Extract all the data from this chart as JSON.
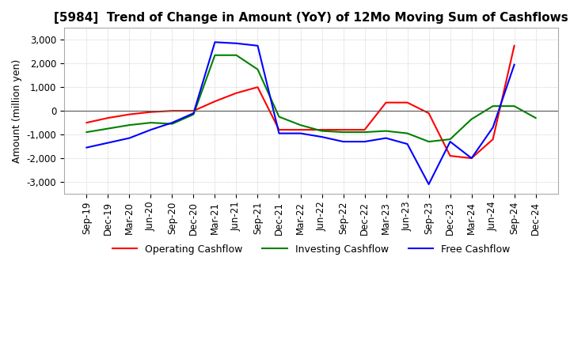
{
  "title": "[5984]  Trend of Change in Amount (YoY) of 12Mo Moving Sum of Cashflows",
  "ylabel": "Amount (million yen)",
  "ylim": [
    -3500,
    3500
  ],
  "yticks": [
    -3000,
    -2000,
    -1000,
    0,
    1000,
    2000,
    3000
  ],
  "x_labels": [
    "Sep-19",
    "Dec-19",
    "Mar-20",
    "Jun-20",
    "Sep-20",
    "Dec-20",
    "Mar-21",
    "Jun-21",
    "Sep-21",
    "Dec-21",
    "Mar-22",
    "Jun-22",
    "Sep-22",
    "Dec-22",
    "Mar-23",
    "Jun-23",
    "Sep-23",
    "Dec-23",
    "Mar-24",
    "Jun-24",
    "Sep-24",
    "Dec-24"
  ],
  "operating": [
    -500,
    -300,
    -150,
    -50,
    0,
    0,
    400,
    750,
    1000,
    -800,
    -800,
    -800,
    -800,
    -800,
    350,
    350,
    -100,
    -1900,
    -2000,
    -1200,
    2750,
    null
  ],
  "investing": [
    -900,
    -750,
    -600,
    -500,
    -550,
    -150,
    2350,
    2350,
    1750,
    -250,
    -600,
    -850,
    -900,
    -900,
    -850,
    -950,
    -1300,
    -1200,
    -350,
    200,
    200,
    -300
  ],
  "free": [
    -1550,
    -1350,
    -1150,
    -800,
    -500,
    -100,
    2900,
    2850,
    2750,
    -950,
    -950,
    -1100,
    -1300,
    -1300,
    -1150,
    -1400,
    -3100,
    -1300,
    -2000,
    -700,
    1950,
    null
  ],
  "operating_color": "#ff0000",
  "investing_color": "#008000",
  "free_color": "#0000ff",
  "background_color": "#ffffff",
  "grid_color": "#b0b0b0",
  "title_fontsize": 11,
  "label_fontsize": 9,
  "tick_fontsize": 8.5
}
